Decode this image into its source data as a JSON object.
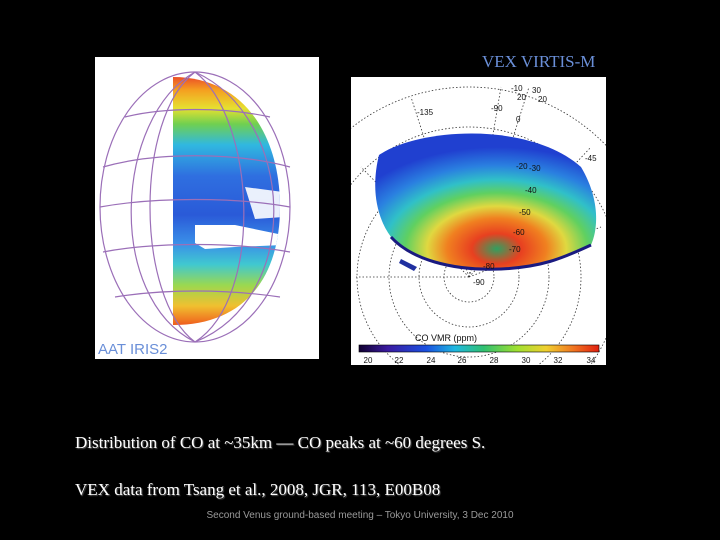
{
  "vex_label": "VEX VIRTIS-M",
  "iris_label": "AAT IRIS2",
  "polar_lat_labels": [
    "-10",
    "20",
    "0",
    "-20",
    "-30",
    "-40",
    "-50",
    "-60",
    "-70",
    "-80",
    "-90"
  ],
  "polar_lon_labels": [
    "-135",
    "-90",
    "-45",
    "30",
    "20"
  ],
  "colorbar": {
    "title": "CO VMR (ppm)",
    "ticks": [
      "20",
      "22",
      "24",
      "26",
      "28",
      "30",
      "32",
      "34"
    ]
  },
  "caption_1": "Distribution of CO at ~35km — CO peaks at ~60 degrees S.",
  "caption_2": "VEX data from Tsang et al., 2008, JGR, 113, E00B08",
  "footer": "Second Venus ground-based meeting – Tokyo University, 3 Dec 2010"
}
